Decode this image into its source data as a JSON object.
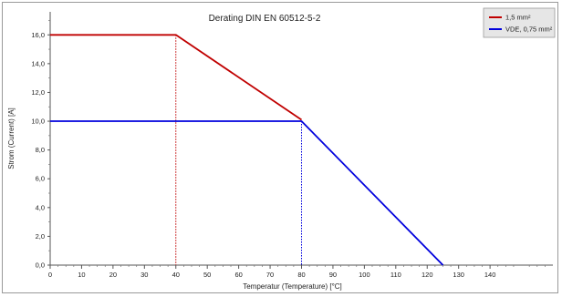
{
  "chart_data": {
    "type": "line",
    "title": "Derating DIN EN 60512-5-2",
    "xlabel": "Temperatur (Temperature) [°C]",
    "ylabel": "Strom (Current) [A]",
    "xlim": [
      0,
      160
    ],
    "ylim": [
      0,
      17.6
    ],
    "x_ticks": [
      0,
      10,
      20,
      30,
      40,
      50,
      60,
      70,
      80,
      90,
      100,
      110,
      120,
      130,
      140
    ],
    "x_tick_labels": [
      "0",
      "10",
      "20",
      "30",
      "40",
      "50",
      "60",
      "70",
      "80",
      "90",
      "100",
      "110",
      "120",
      "130",
      "140"
    ],
    "y_ticks": [
      0,
      2,
      4,
      6,
      8,
      10,
      12,
      14,
      16
    ],
    "y_tick_labels": [
      "0,0",
      "2,0",
      "4,0",
      "6,0",
      "8,0",
      "10,0",
      "12,0",
      "14,0",
      "16,0"
    ],
    "grid": false,
    "legend_position": "top-right",
    "series": [
      {
        "name": "1,5 mm²",
        "color": "#c00000",
        "points": [
          [
            0,
            16.0
          ],
          [
            40,
            16.0
          ],
          [
            80,
            10.1
          ]
        ],
        "dropline_x": 40
      },
      {
        "name": "VDE, 0,75 mm²",
        "color": "#0000dd",
        "points": [
          [
            0,
            10.0
          ],
          [
            80,
            10.0
          ],
          [
            125,
            0.0
          ]
        ],
        "dropline_x": 80
      }
    ]
  }
}
